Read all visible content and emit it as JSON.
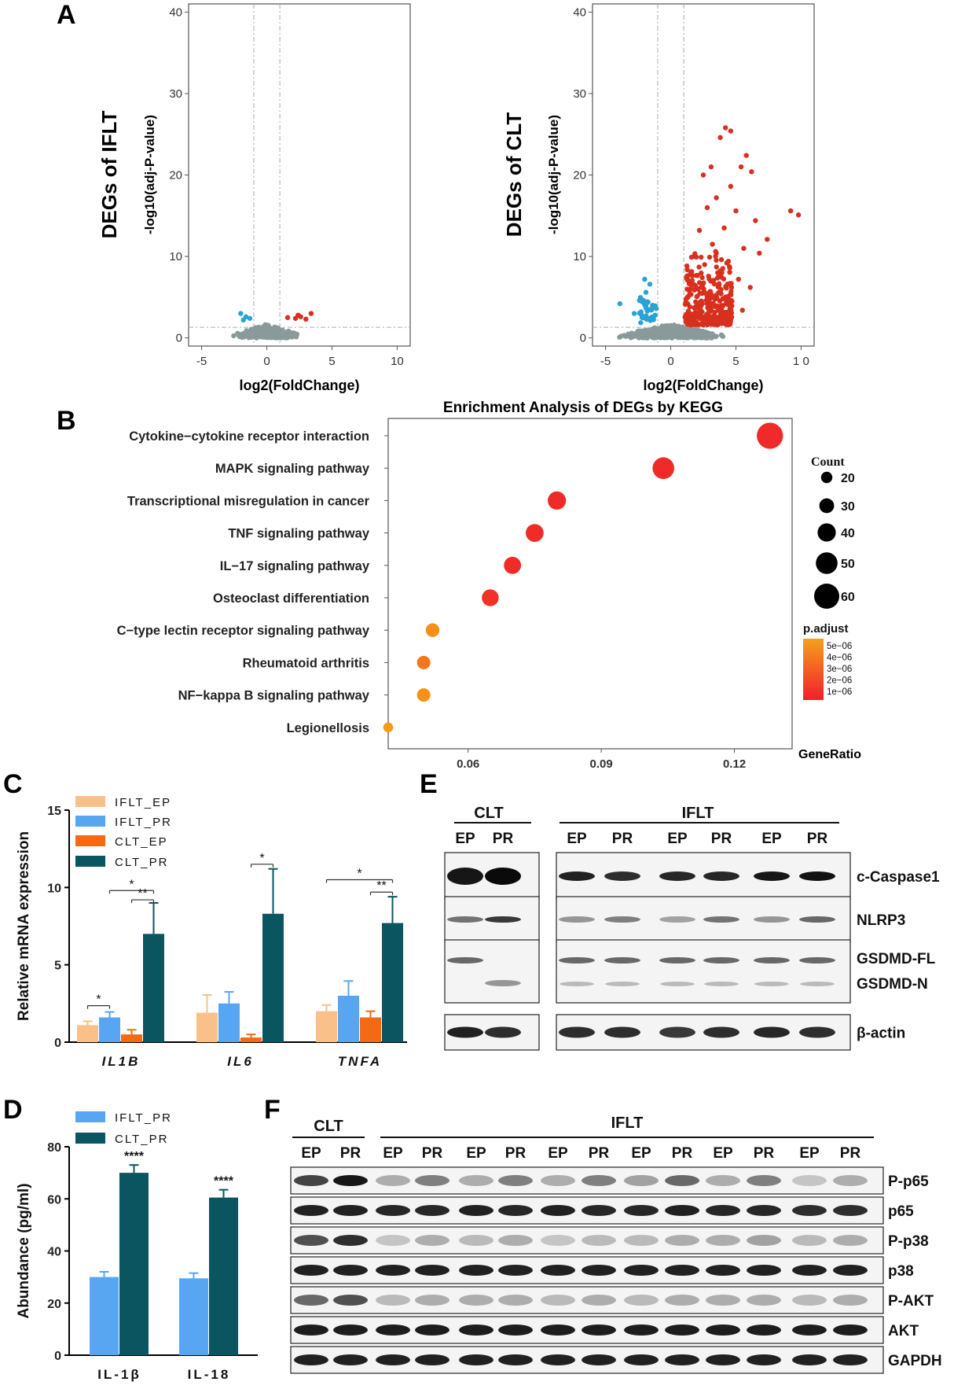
{
  "panels": {
    "a": "A",
    "b": "B",
    "c": "C",
    "d": "D",
    "e": "E",
    "f": "F"
  },
  "volcano": [
    {
      "title": "DEGs of IFLT",
      "xlabel": "log2(FoldChange)",
      "ylabel": "-log10(adj-P-value)",
      "xticks": [
        "-5",
        "0",
        "5",
        "10"
      ],
      "yticks": [
        "0",
        "10",
        "20",
        "30",
        "40"
      ]
    },
    {
      "title": "DEGs of CLT",
      "xlabel": "log2(FoldChange)",
      "ylabel": "-log10(adj-P-value)",
      "xticks": [
        "-5",
        "0",
        "5",
        "1 0"
      ],
      "yticks": [
        "0",
        "10",
        "20",
        "30",
        "40"
      ]
    }
  ],
  "colors": {
    "up": "#d7301f",
    "down": "#29a3d6",
    "ns": "#8a9a9a",
    "ifltEP": "#f9c089",
    "ifltPR": "#58a6f2",
    "cltEP": "#f46a13",
    "cltPR": "#0b5561"
  },
  "chart_data": [
    {
      "type": "scatter",
      "panel": "A-left",
      "xlim": [
        -6,
        11
      ],
      "ylim": [
        -1,
        41
      ],
      "series": [
        {
          "role": "up",
          "points": [
            [
              1.6,
              2.5
            ],
            [
              2.2,
              2.4
            ],
            [
              2.6,
              2.6
            ],
            [
              3.0,
              2.3
            ],
            [
              3.4,
              3.0
            ],
            [
              2.4,
              2.8
            ]
          ]
        },
        {
          "role": "down",
          "points": [
            [
              -2.0,
              3.0
            ],
            [
              -1.6,
              2.6
            ],
            [
              -1.8,
              2.2
            ],
            [
              -1.3,
              2.4
            ]
          ]
        }
      ]
    },
    {
      "type": "scatter",
      "panel": "A-right",
      "xlim": [
        -6,
        11
      ],
      "ylim": [
        -1,
        41
      ],
      "series": [
        {
          "role": "up",
          "points": [
            [
              4.2,
              25.8
            ],
            [
              4.6,
              25.4
            ],
            [
              3.8,
              24.6
            ],
            [
              5.8,
              22.4
            ],
            [
              5.4,
              21.0
            ],
            [
              9.2,
              15.6
            ],
            [
              9.8,
              15.1
            ],
            [
              7.4,
              12.1
            ],
            [
              3.1,
              21.0
            ],
            [
              2.5,
              20.0
            ],
            [
              6.2,
              20.4
            ],
            [
              4.6,
              18.6
            ],
            [
              3.5,
              17.2
            ],
            [
              2.8,
              16.0
            ],
            [
              5.0,
              15.6
            ],
            [
              6.5,
              14.4
            ],
            [
              4.1,
              13.5
            ],
            [
              2.2,
              13.2
            ],
            [
              3.2,
              11.5
            ],
            [
              5.6,
              11.0
            ],
            [
              6.8,
              10.4
            ],
            [
              1.8,
              10.0
            ],
            [
              2.6,
              9.0
            ],
            [
              4.3,
              9.2
            ],
            [
              3.6,
              8.0
            ],
            [
              5.2,
              7.2
            ],
            [
              1.5,
              7.0
            ],
            [
              2.1,
              6.0
            ],
            [
              6.1,
              6.2
            ],
            [
              3.0,
              5.0
            ],
            [
              4.7,
              4.5
            ],
            [
              1.3,
              4.2
            ],
            [
              2.4,
              3.2
            ],
            [
              3.8,
              2.8
            ],
            [
              1.6,
              2.6
            ],
            [
              5.5,
              3.4
            ],
            [
              2.9,
              2.3
            ],
            [
              1.2,
              2.9
            ]
          ]
        },
        {
          "role": "down",
          "points": [
            [
              -3.9,
              4.2
            ],
            [
              -2.0,
              7.2
            ],
            [
              -1.6,
              6.6
            ],
            [
              -1.9,
              5.6
            ],
            [
              -2.4,
              4.6
            ],
            [
              -1.4,
              4.0
            ],
            [
              -1.8,
              3.3
            ],
            [
              -2.8,
              3.0
            ],
            [
              -1.2,
              2.8
            ],
            [
              -2.2,
              2.5
            ],
            [
              -1.5,
              2.2
            ],
            [
              -1.1,
              3.6
            ]
          ]
        }
      ]
    },
    {
      "type": "scatter",
      "panel": "B",
      "title": "Enrichment Analysis of DEGs by KEGG",
      "xlabel": "GeneRatio",
      "xticks": [
        "0.06",
        "0.09",
        "0.12"
      ],
      "xlim": [
        0.042,
        0.133
      ],
      "categories": [
        "Cytokine−cytokine receptor interaction",
        "MAPK signaling pathway",
        "Transcriptional misregulation in cancer",
        "TNF signaling pathway",
        "IL−17 signaling pathway",
        "Osteoclast differentiation",
        "C−type lectin receptor signaling pathway",
        "Rheumatoid arthritis",
        "NF−kappa B signaling pathway",
        "Legionellosis"
      ],
      "x": [
        0.128,
        0.104,
        0.08,
        0.075,
        0.07,
        0.065,
        0.052,
        0.05,
        0.05,
        0.042
      ],
      "count": [
        63,
        50,
        40,
        39,
        37,
        36,
        27,
        26,
        26,
        16
      ],
      "padjust": [
        1e-07,
        1e-07,
        1e-07,
        2e-07,
        2e-07,
        5e-07,
        5.5e-06,
        4e-06,
        5.5e-06,
        6e-06
      ],
      "size_legend": {
        "title": "Count",
        "values": [
          "20",
          "30",
          "40",
          "50",
          "60"
        ]
      },
      "color_legend": {
        "title": "p.adjust",
        "values": [
          "5e−06",
          "4e−06",
          "3e−06",
          "2e−06",
          "1e−06"
        ]
      }
    },
    {
      "type": "bar",
      "panel": "C",
      "ylabel": "Relative mRNA expression",
      "ylim": [
        0,
        15
      ],
      "yticks": [
        "0",
        "5",
        "10",
        "15"
      ],
      "categories": [
        "IL1B",
        "IL6",
        "TNFA"
      ],
      "series": [
        {
          "name": "IFLT_EP",
          "values": [
            1.1,
            1.9,
            2.0
          ],
          "err": [
            0.25,
            1.15,
            0.4
          ]
        },
        {
          "name": "IFLT_PR",
          "values": [
            1.6,
            2.5,
            3.0
          ],
          "err": [
            0.35,
            0.75,
            0.95
          ]
        },
        {
          "name": "CLT_EP",
          "values": [
            0.5,
            0.3,
            1.6
          ],
          "err": [
            0.3,
            0.2,
            0.4
          ]
        },
        {
          "name": "CLT_PR",
          "values": [
            7.0,
            8.3,
            7.7
          ],
          "err": [
            2.0,
            2.9,
            1.7
          ]
        }
      ],
      "sig": [
        "*",
        "*",
        "**",
        "*",
        "*",
        "**"
      ]
    },
    {
      "type": "bar",
      "panel": "D",
      "ylabel": "Abundance (pg/ml)",
      "ylim": [
        0,
        80
      ],
      "yticks": [
        "0",
        "20",
        "40",
        "60",
        "80"
      ],
      "categories": [
        "IL-1β",
        "IL-18"
      ],
      "series": [
        {
          "name": "IFLT_PR",
          "values": [
            30,
            29.5
          ],
          "err": [
            2,
            2
          ]
        },
        {
          "name": "CLT_PR",
          "values": [
            70,
            60.5
          ],
          "err": [
            3,
            3
          ]
        }
      ],
      "sig": [
        "****",
        "****"
      ]
    }
  ],
  "blot_e": {
    "group1": "CLT",
    "group2": "IFLT",
    "lanes": [
      "EP",
      "PR",
      "EP",
      "PR",
      "EP",
      "PR",
      "EP",
      "PR"
    ],
    "rows": [
      "c-Caspase1",
      "NLRP3",
      "GSDMD-FL",
      "GSDMD-N",
      "β-actin"
    ]
  },
  "blot_f": {
    "group1": "CLT",
    "group2": "IFLT",
    "lanes": [
      "EP",
      "PR",
      "EP",
      "PR",
      "EP",
      "PR",
      "EP",
      "PR",
      "EP",
      "PR",
      "EP",
      "PR",
      "EP",
      "PR"
    ],
    "rows": [
      "P-p65",
      "p65",
      "P-p38",
      "p38",
      "P-AKT",
      "AKT",
      "GAPDH"
    ]
  }
}
